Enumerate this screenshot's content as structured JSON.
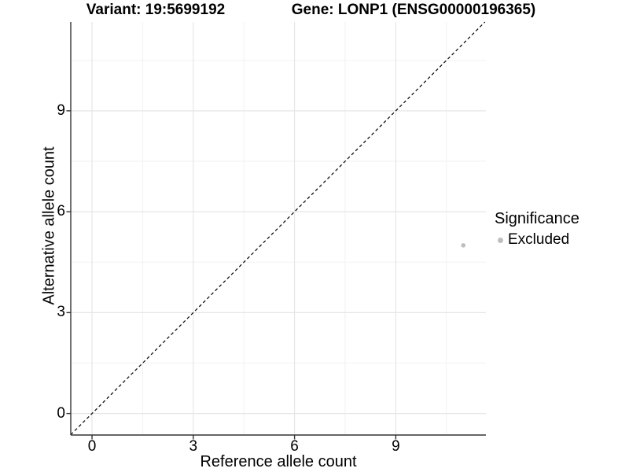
{
  "header": {
    "title_left": "Variant: 19:5699192",
    "title_right": "Gene: LONP1 (ENSG00000196365)"
  },
  "chart_data": {
    "type": "scatter",
    "title_left": "Variant: 19:5699192",
    "title_right": "Gene: LONP1 (ENSG00000196365)",
    "xlabel": "Reference allele count",
    "ylabel": "Alternative allele count",
    "x_ticks": [
      0,
      3,
      6,
      9
    ],
    "y_ticks": [
      0,
      3,
      6,
      9
    ],
    "xlim": [
      -0.63,
      11.67
    ],
    "ylim": [
      -0.64,
      11.64
    ],
    "minor_interval": 1.5,
    "grid": "major+minor",
    "points": [
      {
        "x": 11,
        "y": 5,
        "significance": "Excluded"
      }
    ],
    "identity_line": {
      "equation": "y = x",
      "style": "dashed",
      "color": "#000000"
    },
    "point_color": "#bebebe",
    "grid_major_color": "#e6e6e6",
    "grid_minor_color": "#f2f2f2",
    "axis_color": "#333333",
    "text_color": "#000000",
    "legend": {
      "title": "Significance",
      "position": "right",
      "entries": [
        {
          "label": "Excluded",
          "color": "#bebebe"
        }
      ]
    }
  }
}
